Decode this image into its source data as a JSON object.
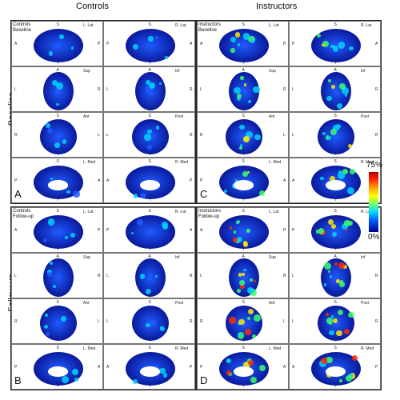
{
  "column_titles": [
    "Controls",
    "Instructors"
  ],
  "row_labels": [
    "Baseline",
    "Follow-up"
  ],
  "panels": [
    {
      "letter": "A",
      "header": [
        "Controls",
        "Baseline"
      ],
      "group": "controls",
      "session": "baseline"
    },
    {
      "letter": "B",
      "header": [
        "Controls",
        "Follow-up"
      ],
      "group": "controls",
      "session": "followup"
    },
    {
      "letter": "C",
      "header": [
        "Instructors",
        "Baseline"
      ],
      "group": "instructors",
      "session": "baseline"
    },
    {
      "letter": "D",
      "header": [
        "Instructors",
        "Follow-up"
      ],
      "group": "instructors",
      "session": "followup"
    }
  ],
  "views": [
    {
      "left": {
        "name": "L. Lat",
        "top": "S",
        "bottom": "I",
        "l": "A",
        "r": "P"
      },
      "right": {
        "name": "R. Lat",
        "top": "S",
        "bottom": "I",
        "l": "P",
        "r": "A"
      }
    },
    {
      "left": {
        "name": "Sup",
        "top": "A",
        "bottom": "P",
        "l": "L",
        "r": "R"
      },
      "right": {
        "name": "Inf",
        "top": "A",
        "bottom": "P",
        "l": "L",
        "r": "R"
      }
    },
    {
      "left": {
        "name": "Ant",
        "top": "S",
        "bottom": "I",
        "l": "R",
        "r": "L"
      },
      "right": {
        "name": "Post",
        "top": "S",
        "bottom": "I",
        "l": "L",
        "r": "R"
      }
    },
    {
      "left": {
        "name": "L. Med",
        "top": "S",
        "bottom": "I",
        "l": "P",
        "r": "A"
      },
      "right": {
        "name": "R. Med",
        "top": "S",
        "bottom": "I",
        "l": "A",
        "r": "P"
      }
    }
  ],
  "colorbar": {
    "max_label": "75%",
    "min_label": "0%",
    "colors": [
      "#b00000",
      "#ff2000",
      "#ffb000",
      "#ffff00",
      "#80ff60",
      "#00e0ff",
      "#0060ff",
      "#000090"
    ]
  },
  "brain_colors": {
    "base": "#0a1a9c",
    "mid": "#1f5bff",
    "cyan": "#00d2ff",
    "green": "#3cff6a",
    "yellow": "#ffe800",
    "red": "#ff2a00"
  }
}
